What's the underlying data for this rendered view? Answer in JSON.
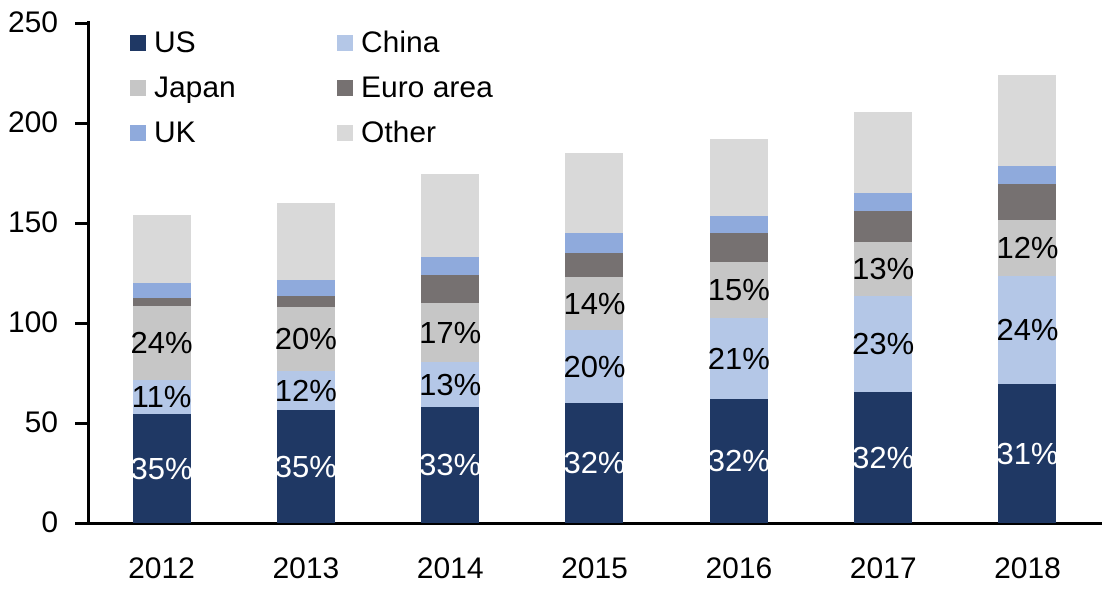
{
  "chart_data": {
    "type": "bar",
    "stacked": true,
    "title": "",
    "xlabel": "",
    "ylabel": "",
    "categories": [
      "2012",
      "2013",
      "2014",
      "2015",
      "2016",
      "2017",
      "2018"
    ],
    "series": [
      {
        "name": "US",
        "color": "#1F3864",
        "values": [
          54.5,
          56.5,
          58,
          60,
          62,
          65.5,
          69.5
        ],
        "segment_labels": [
          "35%",
          "35%",
          "33%",
          "32%",
          "32%",
          "32%",
          "31%"
        ],
        "label_color": "#FFFFFF"
      },
      {
        "name": "China",
        "color": "#B4C7E7",
        "values": [
          17,
          19.5,
          22.5,
          36.5,
          40.5,
          48,
          54
        ],
        "segment_labels": [
          "11%",
          "12%",
          "13%",
          "20%",
          "21%",
          "23%",
          "24%"
        ],
        "label_color": "#000000"
      },
      {
        "name": "Japan",
        "color": "#C6C6C6",
        "values": [
          37,
          32,
          29.5,
          26.5,
          28,
          27,
          28
        ],
        "segment_labels": [
          "24%",
          "20%",
          "17%",
          "14%",
          "15%",
          "13%",
          "12%"
        ],
        "label_color": "#000000"
      },
      {
        "name": "Euro area",
        "color": "#767171",
        "values": [
          4,
          5.5,
          14,
          12,
          14.5,
          15.5,
          18
        ],
        "segment_labels": null,
        "label_color": null
      },
      {
        "name": "UK",
        "color": "#8FAADC",
        "values": [
          7.5,
          8,
          9,
          10,
          8.5,
          9,
          9
        ],
        "segment_labels": null,
        "label_color": null
      },
      {
        "name": "Other",
        "color": "#D9D9D9",
        "values": [
          34,
          38.5,
          41.5,
          40,
          38.5,
          40.5,
          45.5
        ],
        "segment_labels": null,
        "label_color": null
      }
    ],
    "totals": [
      154,
      160,
      174.5,
      185,
      192,
      205.5,
      224
    ],
    "ylim": [
      0,
      250
    ],
    "yticks": [
      0,
      50,
      100,
      150,
      200,
      250
    ],
    "grid": false,
    "legend_position": "top-left",
    "legend_columns": 2,
    "legend_order": [
      "US",
      "China",
      "Japan",
      "Euro area",
      "UK",
      "Other"
    ],
    "axis_color": "#000000",
    "text_color": "#000000",
    "background_color": "#FFFFFF"
  }
}
